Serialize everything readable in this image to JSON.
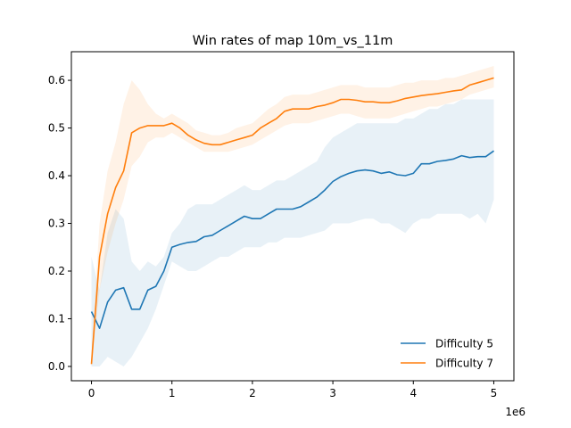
{
  "chart_data": {
    "type": "line",
    "title": "Win rates of map 10m_vs_11m",
    "xlabel": "",
    "ylabel": "",
    "x_offset_label": "1e6",
    "xlim": [
      -0.25,
      5.25
    ],
    "ylim": [
      -0.03,
      0.66
    ],
    "x_ticks": [
      0,
      1,
      2,
      3,
      4,
      5
    ],
    "x_tick_labels": [
      "0",
      "1",
      "2",
      "3",
      "4",
      "5"
    ],
    "y_ticks": [
      0.0,
      0.1,
      0.2,
      0.3,
      0.4,
      0.5,
      0.6
    ],
    "y_tick_labels": [
      "0.0",
      "0.1",
      "0.2",
      "0.3",
      "0.4",
      "0.5",
      "0.6"
    ],
    "grid": false,
    "legend_position": "bottom-right",
    "x": [
      0.0,
      0.1,
      0.2,
      0.3,
      0.4,
      0.5,
      0.6,
      0.7,
      0.8,
      0.9,
      1.0,
      1.1,
      1.2,
      1.3,
      1.4,
      1.5,
      1.6,
      1.7,
      1.8,
      1.9,
      2.0,
      2.1,
      2.2,
      2.3,
      2.4,
      2.5,
      2.6,
      2.7,
      2.8,
      2.9,
      3.0,
      3.1,
      3.2,
      3.3,
      3.4,
      3.5,
      3.6,
      3.7,
      3.8,
      3.9,
      4.0,
      4.1,
      4.2,
      4.3,
      4.4,
      4.5,
      4.6,
      4.7,
      4.8,
      4.9,
      5.0
    ],
    "series": [
      {
        "name": "Difficulty 5",
        "color": "#1f77b4",
        "values": [
          0.115,
          0.08,
          0.135,
          0.16,
          0.165,
          0.12,
          0.12,
          0.16,
          0.168,
          0.2,
          0.25,
          0.256,
          0.26,
          0.262,
          0.272,
          0.275,
          0.285,
          0.295,
          0.305,
          0.315,
          0.31,
          0.31,
          0.32,
          0.33,
          0.33,
          0.33,
          0.335,
          0.345,
          0.355,
          0.37,
          0.388,
          0.398,
          0.405,
          0.41,
          0.412,
          0.41,
          0.405,
          0.408,
          0.402,
          0.4,
          0.405,
          0.425,
          0.425,
          0.43,
          0.432,
          0.435,
          0.442,
          0.438,
          0.44,
          0.44,
          0.452
        ],
        "lower": [
          0.0,
          0.0,
          0.02,
          0.01,
          0.0,
          0.02,
          0.05,
          0.08,
          0.12,
          0.17,
          0.22,
          0.21,
          0.2,
          0.2,
          0.21,
          0.22,
          0.23,
          0.23,
          0.24,
          0.25,
          0.25,
          0.25,
          0.26,
          0.26,
          0.27,
          0.27,
          0.27,
          0.275,
          0.28,
          0.285,
          0.3,
          0.3,
          0.3,
          0.305,
          0.31,
          0.31,
          0.3,
          0.3,
          0.29,
          0.28,
          0.3,
          0.31,
          0.31,
          0.32,
          0.32,
          0.32,
          0.32,
          0.31,
          0.32,
          0.3,
          0.35
        ],
        "upper": [
          0.23,
          0.16,
          0.28,
          0.33,
          0.31,
          0.22,
          0.2,
          0.22,
          0.21,
          0.23,
          0.28,
          0.3,
          0.33,
          0.34,
          0.34,
          0.34,
          0.35,
          0.36,
          0.37,
          0.38,
          0.37,
          0.37,
          0.38,
          0.39,
          0.39,
          0.4,
          0.41,
          0.42,
          0.43,
          0.46,
          0.48,
          0.49,
          0.5,
          0.51,
          0.51,
          0.51,
          0.51,
          0.51,
          0.51,
          0.52,
          0.52,
          0.53,
          0.54,
          0.54,
          0.55,
          0.55,
          0.56,
          0.56,
          0.56,
          0.56,
          0.56
        ]
      },
      {
        "name": "Difficulty 7",
        "color": "#ff7f0e",
        "values": [
          0.005,
          0.23,
          0.32,
          0.375,
          0.41,
          0.49,
          0.5,
          0.505,
          0.505,
          0.505,
          0.51,
          0.5,
          0.485,
          0.475,
          0.468,
          0.465,
          0.465,
          0.47,
          0.475,
          0.48,
          0.485,
          0.5,
          0.51,
          0.52,
          0.535,
          0.54,
          0.54,
          0.54,
          0.545,
          0.548,
          0.553,
          0.56,
          0.56,
          0.558,
          0.555,
          0.555,
          0.553,
          0.553,
          0.557,
          0.562,
          0.565,
          0.568,
          0.57,
          0.572,
          0.575,
          0.578,
          0.58,
          0.59,
          0.595,
          0.6,
          0.605
        ],
        "lower": [
          0.0,
          0.16,
          0.24,
          0.3,
          0.35,
          0.42,
          0.44,
          0.47,
          0.48,
          0.48,
          0.49,
          0.48,
          0.47,
          0.46,
          0.45,
          0.45,
          0.45,
          0.45,
          0.455,
          0.46,
          0.465,
          0.475,
          0.485,
          0.495,
          0.505,
          0.51,
          0.51,
          0.51,
          0.515,
          0.52,
          0.525,
          0.53,
          0.53,
          0.525,
          0.52,
          0.52,
          0.52,
          0.52,
          0.525,
          0.53,
          0.535,
          0.54,
          0.545,
          0.545,
          0.55,
          0.555,
          0.56,
          0.57,
          0.575,
          0.58,
          0.585
        ],
        "upper": [
          0.03,
          0.3,
          0.41,
          0.47,
          0.55,
          0.6,
          0.58,
          0.55,
          0.53,
          0.52,
          0.53,
          0.52,
          0.51,
          0.495,
          0.49,
          0.485,
          0.485,
          0.49,
          0.5,
          0.505,
          0.51,
          0.525,
          0.54,
          0.55,
          0.565,
          0.57,
          0.57,
          0.57,
          0.575,
          0.58,
          0.585,
          0.59,
          0.59,
          0.59,
          0.585,
          0.585,
          0.585,
          0.585,
          0.59,
          0.595,
          0.595,
          0.6,
          0.6,
          0.6,
          0.605,
          0.605,
          0.61,
          0.615,
          0.62,
          0.625,
          0.63
        ]
      }
    ]
  }
}
